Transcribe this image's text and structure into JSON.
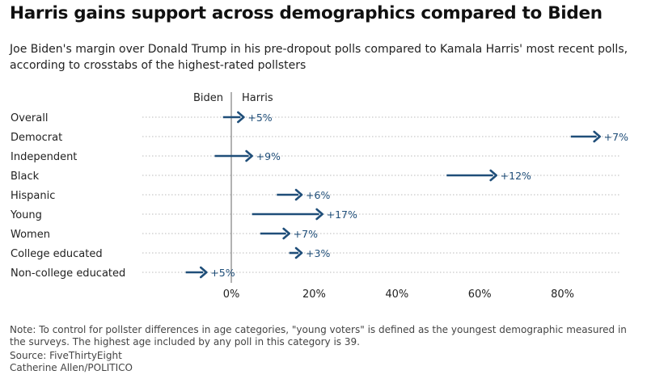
{
  "headline": "Harris gains support across demographics compared to Biden",
  "dek": "Joe Biden's margin over Donald Trump in his pre-dropout polls compared to Kamala Harris' most recent polls, according to crosstabs of the highest-rated pollsters",
  "chart_data": {
    "type": "arrow",
    "legend_left": "Biden",
    "legend_right": "Harris",
    "x_ticks": [
      "0%",
      "20%",
      "40%",
      "60%",
      "80%"
    ],
    "xlim": [
      -12,
      95
    ],
    "categories": [
      "Overall",
      "Democrat",
      "Independent",
      "Black",
      "Hispanic",
      "Young",
      "Women",
      "College educated",
      "Non-college educated"
    ],
    "rows": [
      {
        "label": "Overall",
        "biden": -2,
        "harris": 3,
        "change": "+5%"
      },
      {
        "label": "Democrat",
        "biden": 82,
        "harris": 89,
        "change": "+7%"
      },
      {
        "label": "Independent",
        "biden": -4,
        "harris": 5,
        "change": "+9%"
      },
      {
        "label": "Black",
        "biden": 52,
        "harris": 64,
        "change": "+12%"
      },
      {
        "label": "Hispanic",
        "biden": 11,
        "harris": 17,
        "change": "+6%"
      },
      {
        "label": "Young",
        "biden": 5,
        "harris": 22,
        "change": "+17%"
      },
      {
        "label": "Women",
        "biden": 7,
        "harris": 14,
        "change": "+7%"
      },
      {
        "label": "College educated",
        "biden": 14,
        "harris": 17,
        "change": "+3%"
      },
      {
        "label": "Non-college educated",
        "biden": -11,
        "harris": -6,
        "change": "+5%"
      }
    ],
    "colors": {
      "arrow": "#1f4e79",
      "axis": "#999999",
      "gridline": "#bbbbbb"
    }
  },
  "footer": {
    "note": "Note: To control for pollster differences in age categories, \"young voters\" is defined as the youngest demographic measured in the surveys. The highest age included by any poll in this category is 39.",
    "source": "Source: FiveThirtyEight",
    "credit": "Catherine Allen/POLITICO"
  }
}
